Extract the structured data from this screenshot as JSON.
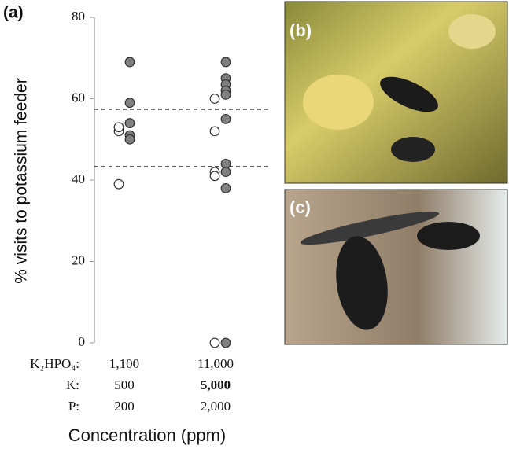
{
  "chart_data": {
    "type": "strip",
    "panel_label": "(a)",
    "y_label": "% visits to potassium feeder",
    "x_label": "Concentration (ppm)",
    "ylim": [
      0,
      80
    ],
    "yticks": [
      0,
      20,
      40,
      60,
      80
    ],
    "series": [
      {
        "color": "#ffffff",
        "values": [
          [
            39,
            52,
            53
          ],
          [
            0,
            60,
            52,
            42,
            41
          ]
        ]
      },
      {
        "color": "#808080",
        "values": [
          [
            69,
            59,
            54,
            51,
            50
          ],
          [
            69,
            65,
            63.5,
            62,
            61,
            55,
            44,
            42,
            38,
            0
          ]
        ]
      }
    ],
    "reference_lines": [
      57.4,
      43.3
    ],
    "x_table": [
      {
        "label": "K₂HPO₄:",
        "values": [
          "1,100",
          "11,000"
        ]
      },
      {
        "label": "K:",
        "values": [
          "500",
          "5,000"
        ]
      },
      {
        "label": "P:",
        "values": [
          "200",
          "2,000"
        ]
      }
    ]
  },
  "photos": [
    {
      "label": "(b)"
    },
    {
      "label": "(c)"
    }
  ]
}
